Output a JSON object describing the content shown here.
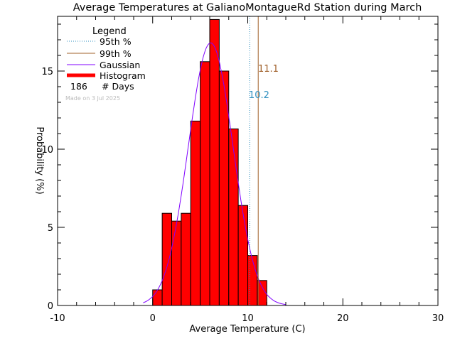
{
  "colors": {
    "axis": "#000000",
    "histogram_fill": "#ff0000",
    "histogram_edge": "#000000",
    "gaussian": "#8000ff",
    "p95": "#3090c0",
    "p99": "#a0602a",
    "made_on": "#bbbbbb"
  },
  "chart_data": {
    "type": "bar",
    "title": "Average Temperatures at GalianoMontagueRd Station during March",
    "xlabel": "Average Temperature (C)",
    "ylabel": "Probability (%)",
    "xlim": [
      -10,
      30
    ],
    "ylim": [
      0,
      18.5
    ],
    "xticks": [
      "-10",
      "0",
      "10",
      "20",
      "30"
    ],
    "yticks": [
      "0",
      "5",
      "10",
      "15"
    ],
    "bin_width": 1,
    "bins": [
      {
        "x0": 0,
        "value": 1.0
      },
      {
        "x0": 1,
        "value": 5.9
      },
      {
        "x0": 2,
        "value": 5.4
      },
      {
        "x0": 3,
        "value": 5.9
      },
      {
        "x0": 4,
        "value": 11.8
      },
      {
        "x0": 5,
        "value": 15.6
      },
      {
        "x0": 6,
        "value": 18.3
      },
      {
        "x0": 7,
        "value": 15.0
      },
      {
        "x0": 8,
        "value": 11.3
      },
      {
        "x0": 9,
        "value": 6.4
      },
      {
        "x0": 10,
        "value": 3.2
      },
      {
        "x0": 11,
        "value": 1.6
      }
    ],
    "gaussian": {
      "mean": 6.1,
      "sigma": 2.35,
      "peak": 16.8
    },
    "p95": {
      "value": 10.2,
      "label": "10.2"
    },
    "p99": {
      "value": 11.1,
      "label": "11.1"
    },
    "legend": {
      "title": "Legend",
      "items": [
        "95th %",
        "99th %",
        "Gaussian",
        "Histogram"
      ],
      "days_count": "186",
      "days_label": "# Days",
      "made_on": "Made on 3 Jul 2025"
    }
  }
}
